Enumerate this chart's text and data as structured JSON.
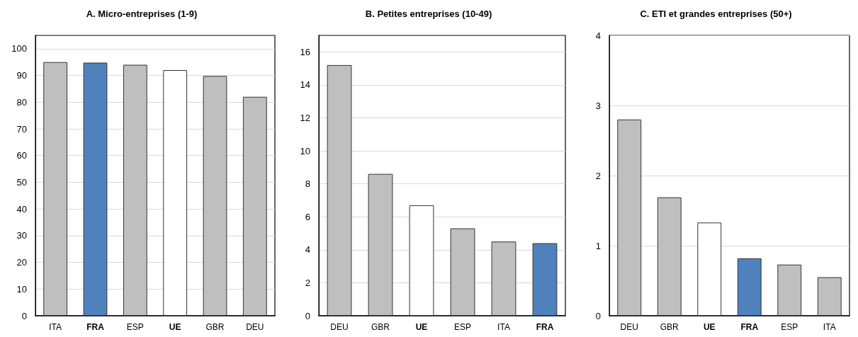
{
  "chart_data": [
    {
      "type": "bar",
      "title": "A. Micro-entreprises (1-9)",
      "categories": [
        "ITA",
        "FRA",
        "ESP",
        "UE",
        "GBR",
        "DEU"
      ],
      "values": [
        95,
        94.8,
        94,
        92,
        89.8,
        82
      ],
      "colors": [
        "#bfbfbf",
        "#4f81bd",
        "#bfbfbf",
        "#ffffff",
        "#bfbfbf",
        "#bfbfbf"
      ],
      "ylim": [
        0,
        105
      ],
      "yticks": [
        0,
        10,
        20,
        30,
        40,
        50,
        60,
        70,
        80,
        90,
        100
      ],
      "grid": "y"
    },
    {
      "type": "bar",
      "title": "B. Petites entreprises (10-49)",
      "categories": [
        "DEU",
        "GBR",
        "UE",
        "ESP",
        "ITA",
        "FRA"
      ],
      "values": [
        15.2,
        8.6,
        6.7,
        5.3,
        4.5,
        4.4
      ],
      "colors": [
        "#bfbfbf",
        "#bfbfbf",
        "#ffffff",
        "#bfbfbf",
        "#bfbfbf",
        "#4f81bd"
      ],
      "ylim": [
        0,
        17
      ],
      "yticks": [
        0,
        2,
        4,
        6,
        8,
        10,
        12,
        14,
        16
      ],
      "grid": "y"
    },
    {
      "type": "bar",
      "title": "C. ETI et grandes entreprises (50+)",
      "categories": [
        "DEU",
        "GBR",
        "UE",
        "FRA",
        "ESP",
        "ITA"
      ],
      "values": [
        2.8,
        1.69,
        1.33,
        0.82,
        0.73,
        0.55
      ],
      "colors": [
        "#bfbfbf",
        "#bfbfbf",
        "#ffffff",
        "#4f81bd",
        "#bfbfbf",
        "#bfbfbf"
      ],
      "ylim": [
        0,
        4
      ],
      "yticks": [
        0,
        1,
        2,
        3,
        4
      ],
      "grid": "y"
    }
  ]
}
